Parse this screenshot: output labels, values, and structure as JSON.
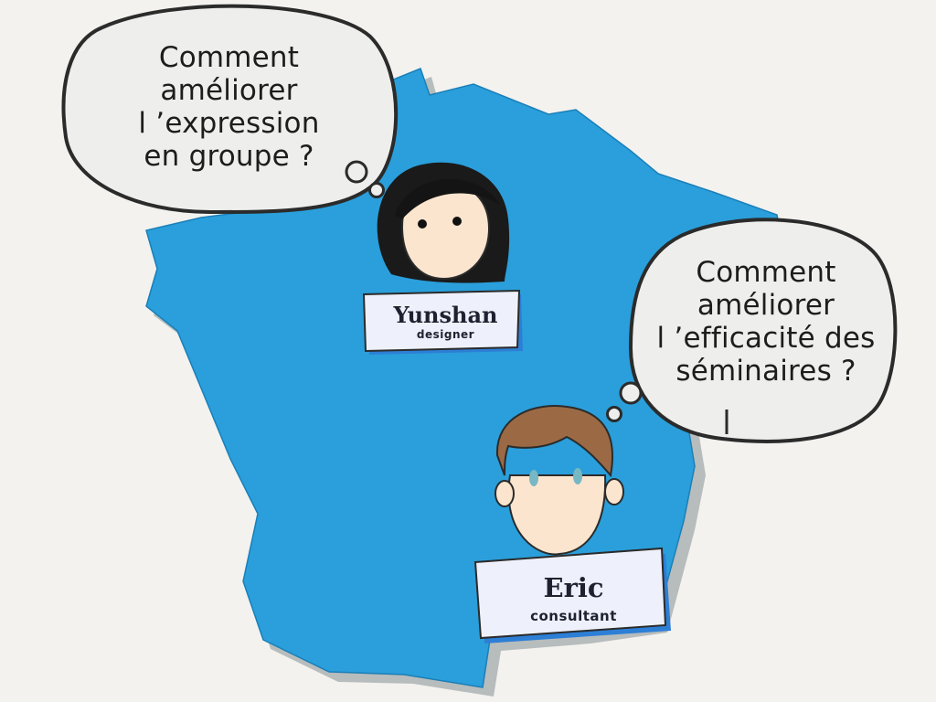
{
  "bubbles": {
    "left": "Comment\naméliorer\nl ’expression\nen groupe ?",
    "right": "Comment\naméliorer\nl ’efficacité des\nséminaires ?"
  },
  "people": {
    "yunshan": {
      "name": "Yunshan",
      "role": "designer"
    },
    "eric": {
      "name": "Eric",
      "role": "consultant"
    }
  },
  "colors": {
    "background": "#f3f2ef",
    "map_fill": "#2a9fdb",
    "map_shadow": "#b7bcbc",
    "skin": "#fbe5cf",
    "hair_yunshan": "#141414",
    "hair_eric": "#9b6a45",
    "eye_eric": "#78b8c4",
    "badge_fill": "#eef1fb",
    "outline": "#2b2b2b"
  }
}
